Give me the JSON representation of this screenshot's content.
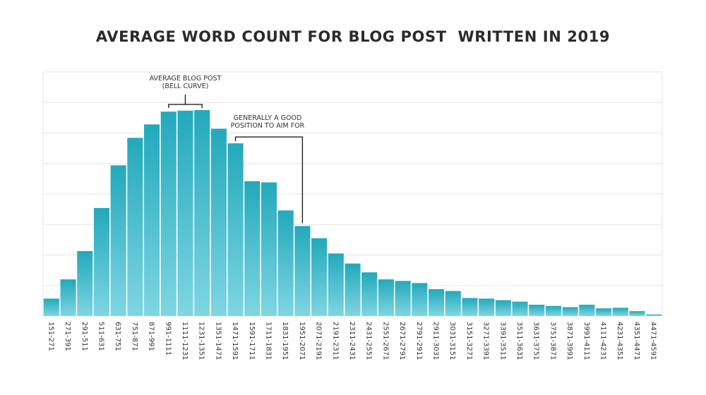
{
  "chart_data": {
    "type": "bar",
    "title": "AVERAGE WORD COUNT FOR BLOG POST  WRITTEN IN 2019",
    "xlabel": "",
    "ylabel": "",
    "grid": true,
    "colors": {
      "bar_top": "#22a9bb",
      "bar_bottom": "#7fd6e2",
      "grid": "#e4e4e4",
      "bracket": "#222222"
    },
    "categories": [
      "151-271",
      "271-391",
      "291-511",
      "511-631",
      "631-751",
      "751-871",
      "871-991",
      "991-1111",
      "1111-1231",
      "1231-1351",
      "1351-1471",
      "1471-1591",
      "1591-1711",
      "1711-1831",
      "1831-1951",
      "1951-2071",
      "2071-2191",
      "2191-2311",
      "2311-2431",
      "2431-2551",
      "2551-2671",
      "2671-2791",
      "2791-2911",
      "2911-3031",
      "3031-3151",
      "3151-3271",
      "3271-3391",
      "3391-3511",
      "3511-3631",
      "3631-3751",
      "3751-3871",
      "3871-3991",
      "3991-4111",
      "4111-4231",
      "4231-4351",
      "4351-4471",
      "4471-4591"
    ],
    "values": [
      5.7,
      12.0,
      21.3,
      35.4,
      49.4,
      58.4,
      62.8,
      67.0,
      67.3,
      67.5,
      61.4,
      56.6,
      44.2,
      43.8,
      34.6,
      29.5,
      25.5,
      20.5,
      17.2,
      14.3,
      12.0,
      11.5,
      10.8,
      8.8,
      8.2,
      5.9,
      5.7,
      5.2,
      4.7,
      3.7,
      3.3,
      2.9,
      3.7,
      2.5,
      2.7,
      1.6,
      0.5
    ],
    "ylim": [
      0,
      80
    ],
    "gridlines": [
      10,
      20,
      30,
      40,
      50,
      60,
      70,
      80
    ],
    "annotations": [
      {
        "lines": [
          "AVERAGE BLOG POST",
          "(BELL CURVE)"
        ],
        "from_index": 7,
        "to_index": 9
      },
      {
        "lines": [
          "GENERALLY A GOOD",
          "POSITION TO AIM FOR"
        ],
        "from_index": 11,
        "to_index": 15
      }
    ]
  }
}
